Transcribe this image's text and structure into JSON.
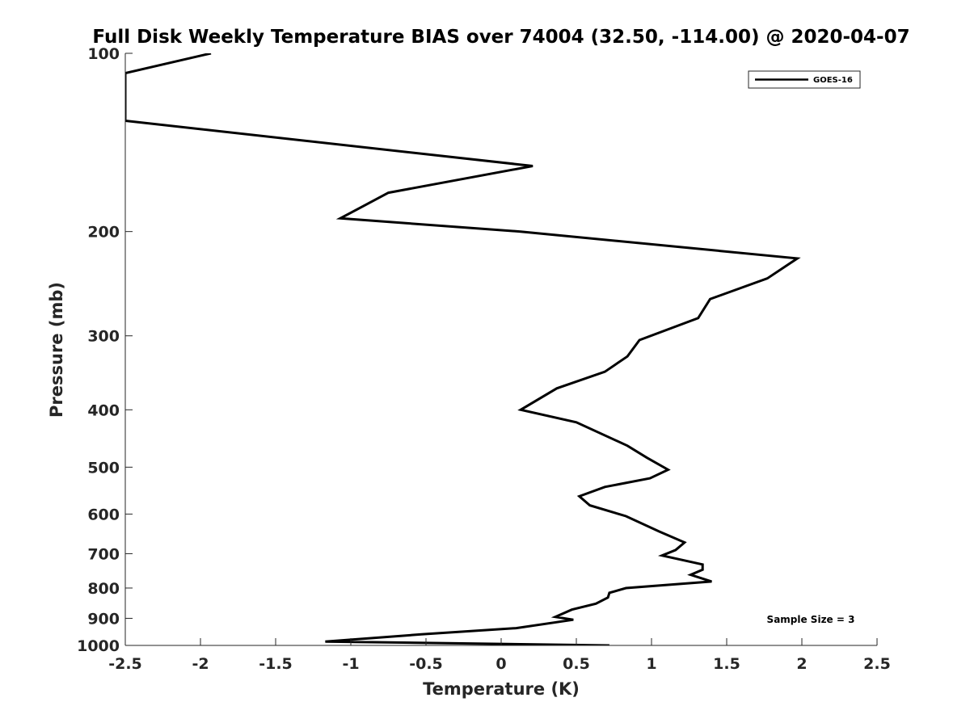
{
  "chart_data": {
    "type": "line",
    "title": "Full Disk Weekly Temperature BIAS over 74004 (32.50, -114.00) @ 2020-04-07",
    "xlabel": "Temperature (K)",
    "ylabel": "Pressure (mb)",
    "xlim": [
      -2.5,
      2.5
    ],
    "ylim": [
      100,
      1000
    ],
    "y_scale": "log",
    "y_reversed": true,
    "grid": false,
    "legend_position": "top-right",
    "x_ticks": [
      "-2.5",
      "-2",
      "-1.5",
      "-1",
      "-0.5",
      "0",
      "0.5",
      "1",
      "1.5",
      "2",
      "2.5"
    ],
    "x_tick_values": [
      -2.5,
      -2,
      -1.5,
      -1,
      -0.5,
      0,
      0.5,
      1,
      1.5,
      2,
      2.5
    ],
    "y_ticks": [
      "100",
      "200",
      "300",
      "400",
      "500",
      "600",
      "700",
      "800",
      "900",
      "1000"
    ],
    "y_tick_values": [
      100,
      200,
      300,
      400,
      500,
      600,
      700,
      800,
      900,
      1000
    ],
    "annotation": "Sample Size = 3",
    "series": [
      {
        "name": "GOES-16",
        "color": "#000000",
        "x": [
          -1.93,
          -2.5,
          -2.5,
          -2.5,
          0.21,
          -0.75,
          -1.07,
          0.13,
          1.97,
          1.77,
          1.39,
          1.31,
          0.92,
          0.84,
          0.69,
          0.37,
          0.13,
          0.5,
          0.84,
          0.97,
          1.11,
          0.99,
          0.69,
          0.52,
          0.59,
          0.83,
          1.05,
          1.22,
          1.16,
          1.07,
          1.34,
          1.34,
          1.26,
          1.4,
          0.83,
          0.72,
          0.71,
          0.63,
          0.47,
          0.36,
          0.48,
          0.1,
          -0.53,
          -1.17,
          0.72
        ],
        "y": [
          100,
          108,
          115,
          130,
          155,
          172,
          190,
          200,
          222,
          240,
          260,
          280,
          305,
          325,
          345,
          368,
          400,
          420,
          460,
          482,
          505,
          522,
          540,
          560,
          580,
          605,
          642,
          670,
          690,
          705,
          730,
          745,
          760,
          780,
          800,
          815,
          830,
          850,
          870,
          895,
          905,
          935,
          958,
          985,
          1000
        ]
      }
    ]
  }
}
